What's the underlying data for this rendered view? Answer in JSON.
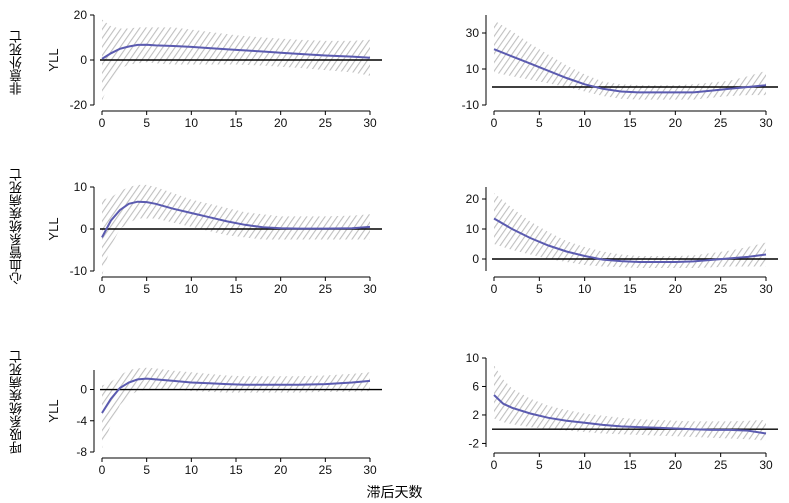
{
  "figure": {
    "x_caption": "滞后天数",
    "row_labels": [
      "非意外死亡",
      "心血管系统疾病死亡",
      "呼吸系统疾病死亡"
    ],
    "colors": {
      "line": "#5b5bb0",
      "band": "#bfbfbf",
      "zero_line": "#000000",
      "axis": "#000000"
    }
  },
  "chart_data": [
    {
      "id": "nonaccidental-left",
      "type": "line",
      "row": 0,
      "col": 0,
      "ylabel": "YLL",
      "xlim": [
        0,
        30
      ],
      "ylim": [
        -20,
        20
      ],
      "yticks": [
        -20,
        0,
        20
      ],
      "ytick_labels": [
        "-20",
        "0",
        "20"
      ],
      "xticks": [
        0,
        5,
        10,
        15,
        20,
        25,
        30
      ],
      "x": [
        0,
        1,
        2,
        3,
        4,
        5,
        6,
        8,
        10,
        12,
        15,
        18,
        20,
        22,
        25,
        28,
        30
      ],
      "y": [
        0.5,
        3,
        5,
        6,
        6.7,
        6.8,
        6.5,
        6.2,
        5.8,
        5.3,
        4.5,
        3.8,
        3.2,
        2.7,
        2,
        1.5,
        1
      ],
      "lower": [
        -18,
        -9,
        -4,
        -2,
        -1.5,
        -1,
        -1.5,
        -2,
        -2,
        -2,
        -2,
        -2.5,
        -3,
        -3.5,
        -4.5,
        -5.5,
        -7
      ],
      "upper": [
        18,
        15,
        14,
        14,
        14.5,
        14.5,
        14.5,
        14.5,
        13.5,
        12.5,
        11,
        10,
        9.5,
        9,
        8.5,
        8.5,
        9
      ]
    },
    {
      "id": "nonaccidental-right",
      "type": "line",
      "row": 0,
      "col": 1,
      "ylabel": "",
      "xlim": [
        0,
        30
      ],
      "ylim": [
        -10,
        40
      ],
      "yticks": [
        -10,
        10,
        30
      ],
      "ytick_labels": [
        "-10",
        "10",
        "30"
      ],
      "xticks": [
        0,
        5,
        10,
        15,
        20,
        25,
        30
      ],
      "x": [
        0,
        2,
        4,
        6,
        8,
        10,
        12,
        14,
        16,
        18,
        20,
        22,
        24,
        26,
        28,
        30
      ],
      "y": [
        21,
        17,
        13,
        9,
        5,
        1.5,
        -1,
        -2.5,
        -3,
        -3,
        -3,
        -3,
        -2,
        -1,
        0,
        1
      ],
      "lower": [
        8,
        6,
        4,
        2,
        0,
        -2.5,
        -5,
        -6.5,
        -7,
        -7,
        -7,
        -7,
        -6,
        -5,
        -4.5,
        -4.5
      ],
      "upper": [
        37,
        31,
        24,
        18,
        12,
        7,
        3,
        1.5,
        1,
        1,
        1,
        1.5,
        2.5,
        3.5,
        6,
        9
      ]
    },
    {
      "id": "cardiovascular-left",
      "type": "line",
      "row": 1,
      "col": 0,
      "ylabel": "YLL",
      "xlim": [
        0,
        30
      ],
      "ylim": [
        -10,
        10
      ],
      "yticks": [
        -10,
        0,
        10
      ],
      "ytick_labels": [
        "-10",
        "0",
        "10"
      ],
      "xticks": [
        0,
        5,
        10,
        15,
        20,
        25,
        30
      ],
      "x": [
        0,
        1,
        2,
        3,
        4,
        5,
        6,
        8,
        10,
        12,
        14,
        16,
        18,
        20,
        22,
        25,
        28,
        30
      ],
      "y": [
        -2,
        2,
        4.5,
        6,
        6.5,
        6.4,
        6,
        4.8,
        3.8,
        2.8,
        1.8,
        1,
        0.4,
        0.2,
        0.1,
        0.1,
        0.2,
        0.5
      ],
      "lower": [
        -11,
        -4,
        0,
        1.5,
        2.5,
        2.5,
        2.5,
        1.5,
        0.5,
        -0.5,
        -1.5,
        -2,
        -2.5,
        -2.5,
        -2.5,
        -2.5,
        -2.5,
        -2.5
      ],
      "upper": [
        7,
        7.5,
        9,
        10,
        10.5,
        10.5,
        10,
        8.5,
        7,
        6,
        5,
        4,
        3.5,
        3,
        3,
        3,
        3.2,
        3.5
      ]
    },
    {
      "id": "cardiovascular-right",
      "type": "line",
      "row": 1,
      "col": 1,
      "ylabel": "",
      "xlim": [
        0,
        30
      ],
      "ylim": [
        -4,
        24
      ],
      "yticks": [
        0,
        10,
        20
      ],
      "ytick_labels": [
        "0",
        "10",
        "20"
      ],
      "xticks": [
        0,
        5,
        10,
        15,
        20,
        25,
        30
      ],
      "x": [
        0,
        2,
        4,
        6,
        8,
        10,
        12,
        14,
        16,
        18,
        20,
        22,
        24,
        26,
        28,
        30
      ],
      "y": [
        13.5,
        10,
        7,
        4.5,
        2.5,
        1,
        -0.2,
        -0.7,
        -1,
        -1,
        -1,
        -0.8,
        -0.3,
        0.2,
        0.7,
        1.5
      ],
      "lower": [
        5,
        3,
        1.5,
        0,
        -1,
        -2,
        -2.5,
        -2.7,
        -3,
        -3,
        -3,
        -3,
        -2.8,
        -2.5,
        -2.5,
        -2.5
      ],
      "upper": [
        22,
        17,
        12.5,
        9,
        6,
        4,
        2.5,
        1.5,
        1,
        1,
        1,
        1.2,
        2,
        2.8,
        4,
        5.5
      ]
    },
    {
      "id": "respiratory-left",
      "type": "line",
      "row": 2,
      "col": 0,
      "ylabel": "YLL",
      "xlim": [
        0,
        30
      ],
      "ylim": [
        -8,
        2.5
      ],
      "yticks": [
        -8,
        -4,
        0
      ],
      "ytick_labels": [
        "-8",
        "-4",
        "0"
      ],
      "xticks": [
        0,
        5,
        10,
        15,
        20,
        25,
        30
      ],
      "x": [
        0,
        1,
        2,
        3,
        4,
        5,
        6,
        8,
        10,
        12,
        14,
        16,
        18,
        20,
        22,
        25,
        28,
        30
      ],
      "y": [
        -3,
        -1.2,
        0.2,
        0.9,
        1.3,
        1.4,
        1.3,
        1.1,
        0.9,
        0.8,
        0.7,
        0.6,
        0.6,
        0.6,
        0.6,
        0.7,
        0.9,
        1.1
      ],
      "lower": [
        -7.5,
        -4.5,
        -2,
        -0.8,
        -0.2,
        0,
        0,
        0,
        -0.2,
        -0.3,
        -0.4,
        -0.4,
        -0.4,
        -0.4,
        -0.4,
        -0.3,
        -0.3,
        -0.2
      ],
      "upper": [
        0.5,
        1,
        1.8,
        2.5,
        2.7,
        2.8,
        2.7,
        2.4,
        2.2,
        2,
        1.8,
        1.7,
        1.7,
        1.7,
        1.7,
        1.8,
        2,
        2.2
      ]
    },
    {
      "id": "respiratory-right",
      "type": "line",
      "row": 2,
      "col": 1,
      "ylabel": "",
      "xlim": [
        0,
        30
      ],
      "ylim": [
        -2.5,
        10
      ],
      "yticks": [
        -2,
        2,
        6,
        10
      ],
      "ytick_labels": [
        "-2",
        "2",
        "6",
        "10"
      ],
      "xticks": [
        0,
        5,
        10,
        15,
        20,
        25,
        30
      ],
      "x": [
        0,
        1,
        2,
        4,
        6,
        8,
        10,
        12,
        14,
        16,
        18,
        20,
        22,
        24,
        26,
        28,
        30
      ],
      "y": [
        4.8,
        3.6,
        3,
        2.2,
        1.6,
        1.2,
        0.9,
        0.6,
        0.4,
        0.3,
        0.2,
        0.1,
        0,
        -0.1,
        -0.1,
        -0.2,
        -0.6
      ],
      "lower": [
        1.5,
        1,
        0.7,
        0.3,
        0,
        -0.2,
        -0.4,
        -0.6,
        -0.7,
        -0.8,
        -0.9,
        -1,
        -1.1,
        -1.2,
        -1.3,
        -1.4,
        -1.6
      ],
      "upper": [
        9,
        7,
        5.7,
        4.3,
        3.3,
        2.7,
        2.2,
        1.9,
        1.6,
        1.4,
        1.3,
        1.2,
        1.1,
        1.1,
        1.1,
        1.2,
        1.3
      ]
    }
  ]
}
